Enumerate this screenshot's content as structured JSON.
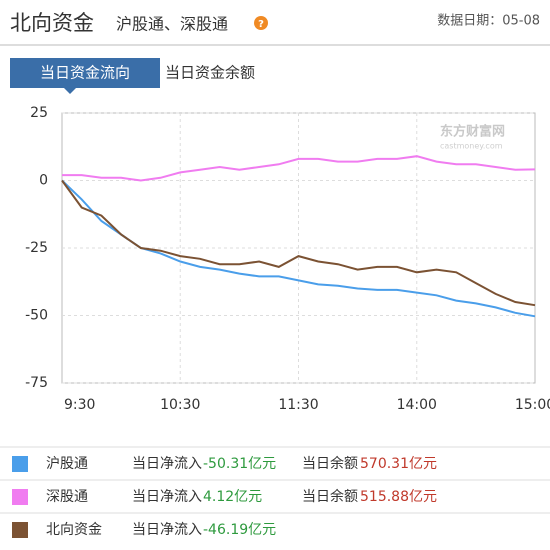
{
  "header": {
    "title": "北向资金",
    "subtitle": "沪股通、深股通",
    "date": "数据日期：05-08"
  },
  "tabs": [
    "当日资金流向",
    "当日资金余额"
  ],
  "chart_data": {
    "type": "line",
    "watermark": "东方财富网",
    "watermark_sub": "castmoney.com",
    "categories": [
      "9:30",
      null,
      null,
      null,
      null,
      null,
      "10:30",
      null,
      null,
      null,
      null,
      null,
      "11:30",
      null,
      null,
      null,
      null,
      null,
      "14:00",
      null,
      null,
      null,
      null,
      null,
      "15:00"
    ],
    "ylim": [
      -75,
      25
    ],
    "yticks": [
      25,
      0,
      -25,
      -50,
      -75
    ],
    "grid": true,
    "series": [
      {
        "name": "沪股通",
        "color": "#4a9eea",
        "values": [
          0,
          -7,
          -15,
          -20,
          -25,
          -27,
          -30,
          -32,
          -33,
          -34.5,
          -35.5,
          -35.5,
          -37,
          -38.5,
          -39,
          -40,
          -40.5,
          -40.5,
          -41.5,
          -42.5,
          -44.5,
          -45.5,
          -47,
          -49,
          -50.31
        ]
      },
      {
        "name": "深股通",
        "color": "#f07cf0",
        "values": [
          2,
          2,
          1,
          1,
          0,
          1,
          3,
          4,
          5,
          4,
          5,
          6,
          8,
          8,
          7,
          7,
          8,
          8,
          9,
          7,
          6,
          6,
          5,
          4,
          4.12
        ]
      },
      {
        "name": "北向资金",
        "color": "#7b5233",
        "values": [
          0,
          -10,
          -13,
          -20,
          -25,
          -26,
          -28,
          -29,
          -31,
          -31,
          -30,
          -32,
          -28,
          -30,
          -31,
          -33,
          -32,
          -32,
          -34,
          -33,
          -34,
          -38,
          -42,
          -45,
          -46.19
        ]
      }
    ]
  },
  "legend_table": {
    "rows": [
      {
        "name": "沪股通",
        "net_label": "当日净流入",
        "net_value": "-50.31亿元",
        "balance_label": "当日余额",
        "balance_value": "570.31亿元"
      },
      {
        "name": "深股通",
        "net_label": "当日净流入",
        "net_value": "4.12亿元",
        "balance_label": "当日余额",
        "balance_value": "515.88亿元"
      },
      {
        "name": "北向资金",
        "net_label": "当日净流入",
        "net_value": "-46.19亿元"
      }
    ]
  }
}
